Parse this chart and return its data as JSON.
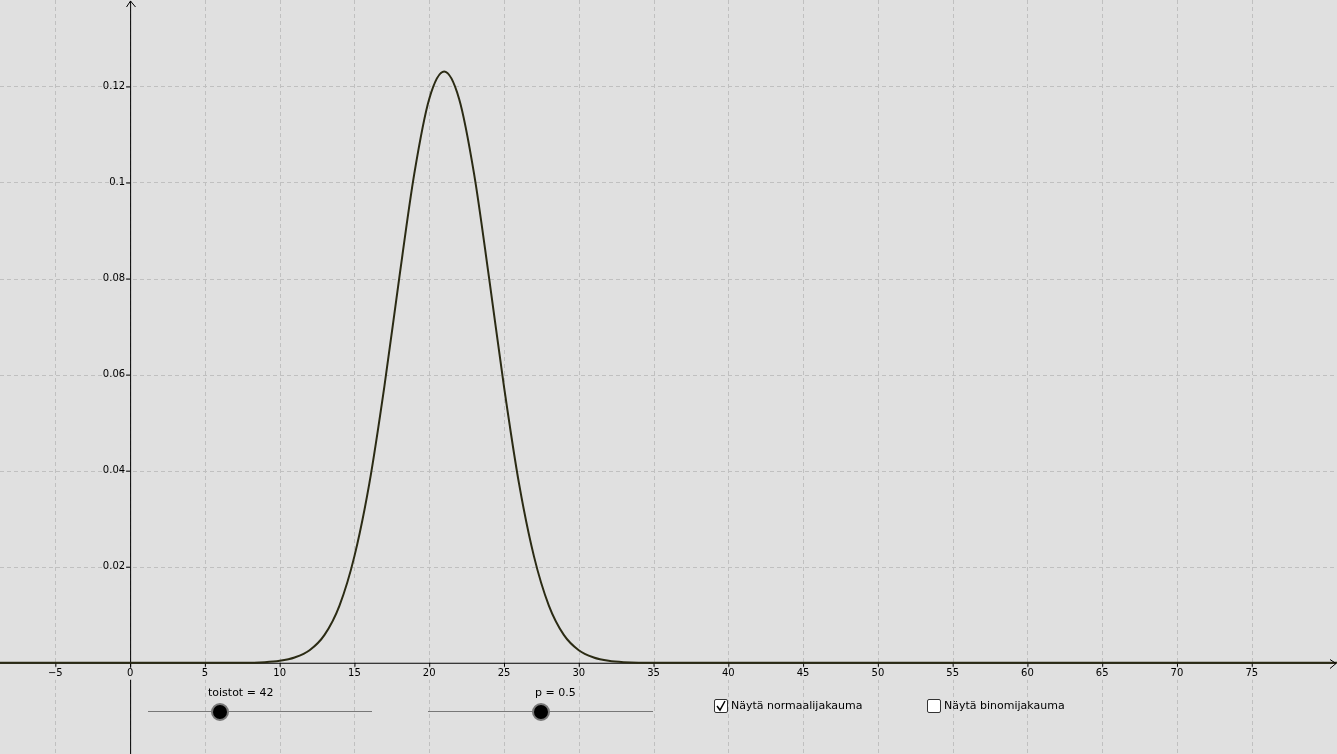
{
  "chart_data": {
    "type": "line",
    "x": [
      -8.7,
      6,
      8,
      9,
      10,
      11,
      12,
      13,
      14,
      15,
      16,
      17,
      18,
      19,
      20,
      21,
      22,
      23,
      24,
      25,
      26,
      27,
      28,
      29,
      30,
      31,
      32,
      33,
      34,
      36,
      80.7
    ],
    "series": [
      {
        "color": "#2b2b14",
        "values": [
          0,
          0,
          0,
          0.0001,
          0.0004,
          0.0011,
          0.0026,
          0.0058,
          0.0119,
          0.0222,
          0.0374,
          0.0575,
          0.0802,
          0.1018,
          0.1174,
          0.1231,
          0.1174,
          0.1018,
          0.0802,
          0.0575,
          0.0374,
          0.0222,
          0.0119,
          0.0058,
          0.0026,
          0.0011,
          0.0004,
          0.0001,
          0,
          0,
          0
        ]
      }
    ],
    "xlim": [
      -8.7,
      80.7
    ],
    "ylim": [
      -0.019,
      0.138
    ],
    "xticks": [
      -5,
      0,
      5,
      10,
      15,
      20,
      25,
      30,
      35,
      40,
      45,
      50,
      55,
      60,
      65,
      70,
      75
    ],
    "yticks": [
      0.02,
      0.04,
      0.06,
      0.08,
      0.1,
      0.12
    ],
    "grid": true,
    "legend": false,
    "marker": "none",
    "line_style": "solid",
    "annotations": [
      "toistot = 42",
      "p = 0.5",
      "Näytä normaalijakauma",
      "Näytä binomijakauma"
    ]
  }
}
